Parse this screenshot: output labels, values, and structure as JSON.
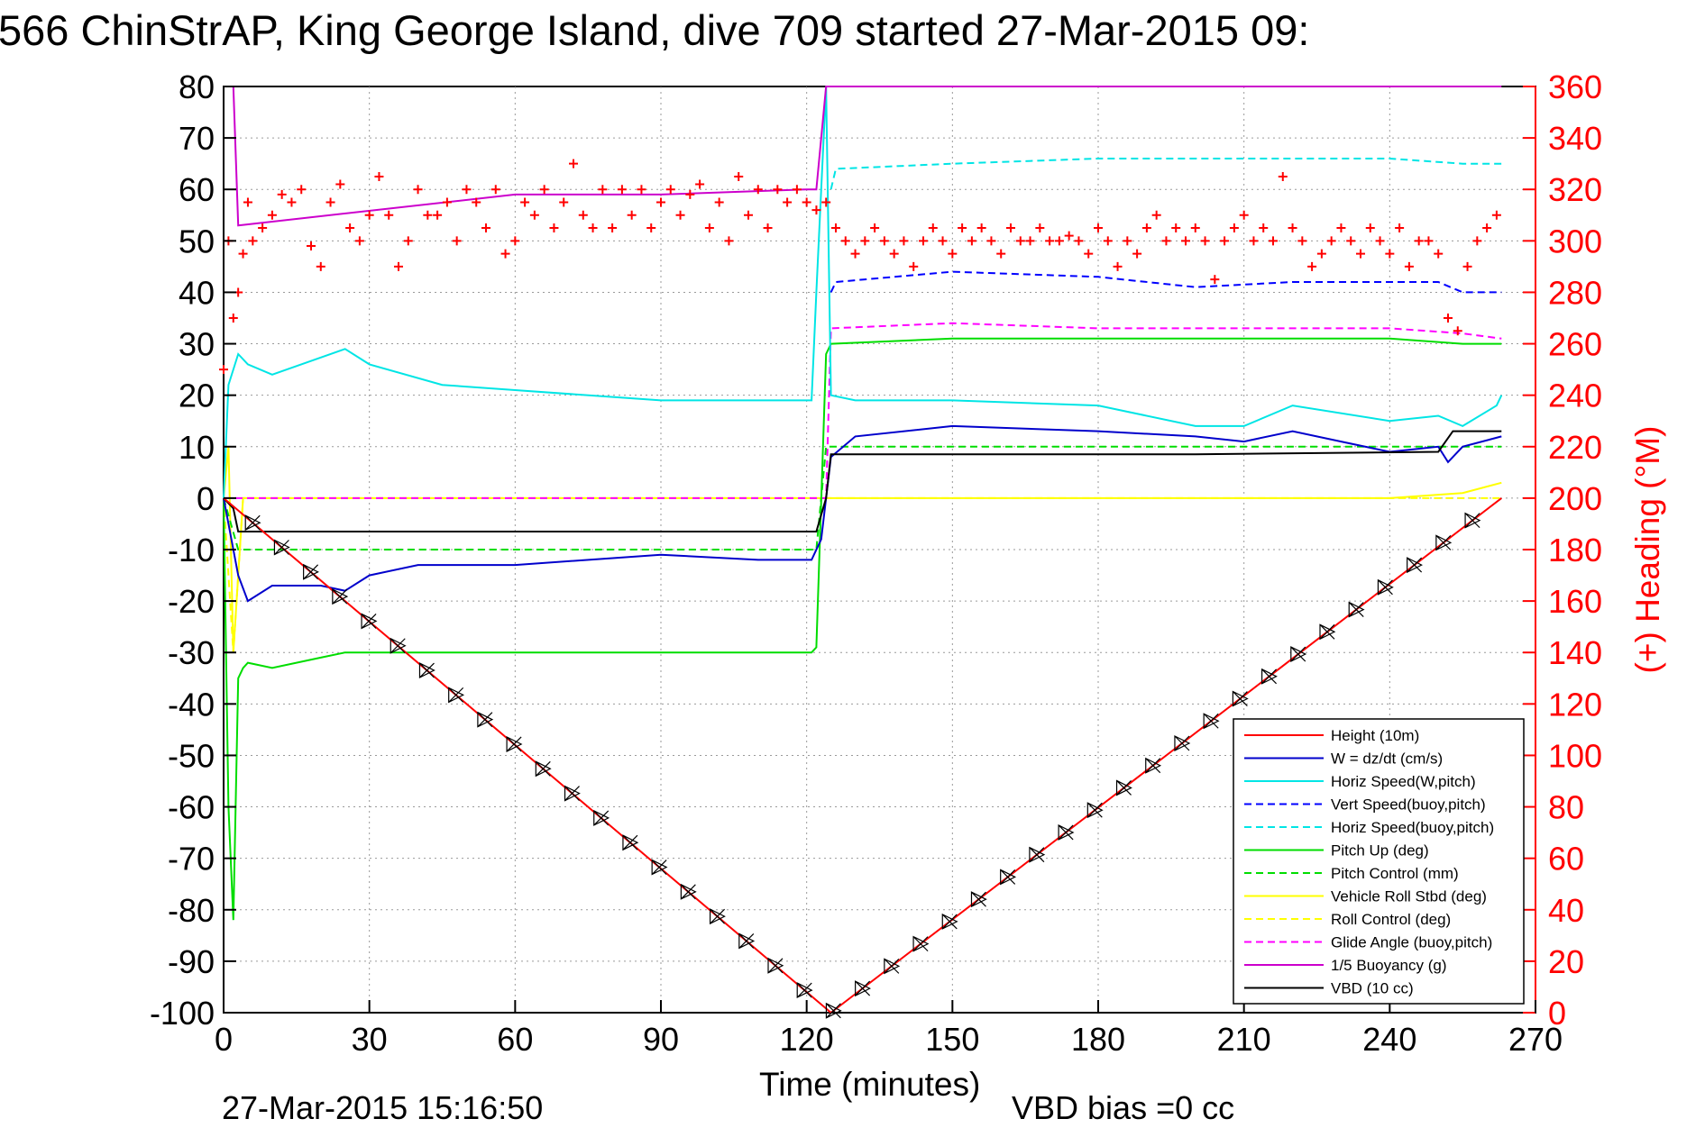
{
  "title": "566 ChinStrAP, King George Island, dive 709 started 27-Mar-2015 09:",
  "footer_left": "27-Mar-2015 15:16:50",
  "footer_right": "VBD bias =0 cc",
  "chart_data": {
    "type": "line",
    "xlabel": "Time (minutes)",
    "ylabel": "",
    "y2label": "(+) Heading (°M)",
    "xlim": [
      0,
      270
    ],
    "ylim": [
      -100,
      80
    ],
    "y2lim": [
      0,
      360
    ],
    "xticks": [
      0,
      30,
      60,
      90,
      120,
      150,
      180,
      210,
      240,
      270
    ],
    "yticks": [
      80,
      70,
      60,
      50,
      40,
      30,
      20,
      10,
      0,
      -10,
      -20,
      -30,
      -40,
      -50,
      -60,
      -70,
      -80,
      -90,
      -100
    ],
    "y2ticks": [
      360,
      340,
      320,
      300,
      280,
      260,
      240,
      220,
      200,
      180,
      160,
      140,
      120,
      100,
      80,
      60,
      40,
      20,
      0
    ],
    "grid": true,
    "legend_position": "bottom-right",
    "colors": {
      "height": "#ff0000",
      "w": "#0000cc",
      "horiz_speed": "#00e5e5",
      "vert_speed_buoy": "#0000ff",
      "horiz_speed_buoy": "#00e5e5",
      "pitch_up": "#00dd00",
      "pitch_control": "#00dd00",
      "roll": "#ffff00",
      "roll_control": "#ffff00",
      "glide_angle": "#ff00ff",
      "buoyancy": "#cc00cc",
      "vbd": "#000000",
      "heading": "#ff0000"
    },
    "series": [
      {
        "name": "Height (10m)",
        "key": "height",
        "dash": false,
        "x": [
          0,
          125,
          263
        ],
        "y": [
          0,
          -100,
          0
        ]
      },
      {
        "name": "W = dz/dt (cm/s)",
        "key": "w",
        "dash": false,
        "x": [
          0,
          1,
          3,
          5,
          10,
          20,
          25,
          30,
          40,
          60,
          90,
          110,
          121,
          123,
          125,
          130,
          150,
          180,
          200,
          210,
          220,
          230,
          240,
          250,
          252,
          255,
          263
        ],
        "y": [
          0,
          -5,
          -15,
          -20,
          -17,
          -17,
          -18,
          -15,
          -13,
          -13,
          -11,
          -12,
          -12,
          -8,
          8,
          12,
          14,
          13,
          12,
          11,
          13,
          11,
          9,
          10,
          7,
          10,
          12
        ]
      },
      {
        "name": "Horiz Speed(W,pitch)",
        "key": "horiz_speed",
        "dash": false,
        "x": [
          0,
          1,
          3,
          5,
          10,
          25,
          30,
          45,
          60,
          90,
          110,
          121,
          122,
          124,
          125,
          130,
          150,
          180,
          200,
          210,
          220,
          240,
          250,
          255,
          262,
          263
        ],
        "y": [
          0,
          22,
          28,
          26,
          24,
          29,
          26,
          22,
          21,
          19,
          19,
          19,
          40,
          80,
          20,
          19,
          19,
          18,
          14,
          14,
          18,
          15,
          16,
          14,
          18,
          20
        ]
      },
      {
        "name": "Vert Speed(buoy,pitch)",
        "key": "vert_speed_buoy",
        "dash": true,
        "x": [
          125,
          126,
          150,
          180,
          200,
          220,
          250,
          255,
          263
        ],
        "y": [
          40,
          42,
          44,
          43,
          41,
          42,
          42,
          40,
          40
        ]
      },
      {
        "name": "Horiz Speed(buoy,pitch)",
        "key": "horiz_speed_buoy",
        "dash": true,
        "x": [
          125,
          126,
          150,
          180,
          210,
          240,
          255,
          263
        ],
        "y": [
          60,
          64,
          65,
          66,
          66,
          66,
          65,
          65
        ]
      },
      {
        "name": "Pitch Up (deg)",
        "key": "pitch_up",
        "dash": false,
        "x": [
          0,
          1,
          2,
          3,
          4,
          5,
          10,
          20,
          25,
          30,
          60,
          90,
          110,
          121,
          122,
          124,
          125,
          150,
          180,
          210,
          240,
          255,
          263
        ],
        "y": [
          0,
          -60,
          -82,
          -35,
          -33,
          -32,
          -33,
          -31,
          -30,
          -30,
          -30,
          -30,
          -30,
          -30,
          -29,
          28,
          30,
          31,
          31,
          31,
          31,
          30,
          30
        ]
      },
      {
        "name": "Pitch Control (mm)",
        "key": "pitch_control",
        "dash": true,
        "x": [
          0,
          3,
          5,
          20,
          30,
          60,
          90,
          121,
          122,
          124,
          125,
          150,
          180,
          240,
          263
        ],
        "y": [
          0,
          -10,
          -10,
          -10,
          -10,
          -10,
          -10,
          -10,
          -10,
          10,
          10,
          10,
          10,
          10,
          10
        ]
      },
      {
        "name": "Vehicle Roll Stbd (deg)",
        "key": "roll",
        "dash": false,
        "x": [
          0,
          1,
          2,
          4,
          10,
          20,
          40,
          60,
          90,
          120,
          124,
          130,
          150,
          180,
          210,
          240,
          255,
          263
        ],
        "y": [
          0,
          10,
          -30,
          0,
          0,
          0,
          0,
          0,
          0,
          0,
          0,
          0,
          0,
          0,
          0,
          0,
          1,
          3
        ]
      },
      {
        "name": "Roll Control (deg)",
        "key": "roll_control",
        "dash": true,
        "x": [
          0,
          2,
          4,
          30,
          60,
          90,
          120,
          124,
          150,
          180,
          210,
          240,
          263
        ],
        "y": [
          0,
          -30,
          0,
          0,
          0,
          0,
          0,
          0,
          0,
          0,
          0,
          0,
          0
        ]
      },
      {
        "name": "Glide Angle (buoy,pitch)",
        "key": "glide_angle",
        "dash": true,
        "x": [
          0,
          2,
          60,
          90,
          120,
          124,
          125,
          150,
          180,
          210,
          240,
          255,
          263
        ],
        "y": [
          0,
          0,
          0,
          0,
          0,
          0,
          33,
          34,
          33,
          33,
          33,
          32,
          31
        ]
      },
      {
        "name": "1/5 Buoyancy (g)",
        "key": "buoyancy",
        "dash": false,
        "x": [
          2,
          3,
          60,
          90,
          120,
          122,
          124,
          263
        ],
        "y": [
          80,
          53,
          59,
          59,
          60,
          60,
          80,
          80
        ]
      },
      {
        "name": "VBD (10 cc)",
        "key": "vbd",
        "dash": false,
        "x": [
          0,
          2,
          3,
          120,
          122,
          124,
          125,
          200,
          250,
          253,
          263
        ],
        "y": [
          0,
          -2,
          -6.5,
          -6.5,
          -6.5,
          0,
          8.5,
          8.5,
          9,
          13,
          13
        ]
      }
    ],
    "heading": {
      "name": "Heading",
      "axis": "right",
      "marker": "+",
      "x": [
        0,
        1,
        2,
        3,
        4,
        5,
        6,
        8,
        10,
        12,
        14,
        16,
        18,
        20,
        22,
        24,
        26,
        28,
        30,
        32,
        34,
        36,
        38,
        40,
        42,
        44,
        46,
        48,
        50,
        52,
        54,
        56,
        58,
        60,
        62,
        64,
        66,
        68,
        70,
        72,
        74,
        76,
        78,
        80,
        82,
        84,
        86,
        88,
        90,
        92,
        94,
        96,
        98,
        100,
        102,
        104,
        106,
        108,
        110,
        112,
        114,
        116,
        118,
        120,
        122,
        124,
        126,
        128,
        130,
        132,
        134,
        136,
        138,
        140,
        142,
        144,
        146,
        148,
        150,
        152,
        154,
        156,
        158,
        160,
        162,
        164,
        166,
        168,
        170,
        172,
        174,
        176,
        178,
        180,
        182,
        184,
        186,
        188,
        190,
        192,
        194,
        196,
        198,
        200,
        202,
        204,
        206,
        208,
        210,
        212,
        214,
        216,
        218,
        220,
        222,
        224,
        226,
        228,
        230,
        232,
        234,
        236,
        238,
        240,
        242,
        244,
        246,
        248,
        250,
        252,
        254,
        256,
        258,
        260,
        262
      ],
      "y": [
        250,
        300,
        270,
        280,
        295,
        315,
        300,
        305,
        310,
        318,
        315,
        320,
        298,
        290,
        315,
        322,
        305,
        300,
        310,
        325,
        310,
        290,
        300,
        320,
        310,
        310,
        315,
        300,
        320,
        315,
        305,
        320,
        295,
        300,
        315,
        310,
        320,
        305,
        315,
        330,
        310,
        305,
        320,
        305,
        320,
        310,
        320,
        305,
        315,
        320,
        310,
        318,
        322,
        305,
        315,
        300,
        325,
        310,
        320,
        305,
        320,
        315,
        320,
        315,
        312,
        315,
        305,
        300,
        295,
        300,
        305,
        300,
        295,
        300,
        290,
        300,
        305,
        300,
        295,
        305,
        300,
        305,
        300,
        295,
        305,
        300,
        300,
        305,
        300,
        300,
        302,
        300,
        295,
        305,
        300,
        290,
        300,
        295,
        305,
        310,
        300,
        305,
        300,
        305,
        300,
        285,
        300,
        305,
        310,
        300,
        305,
        300,
        325,
        305,
        300,
        290,
        295,
        300,
        305,
        300,
        295,
        305,
        300,
        295,
        305,
        290,
        300,
        300,
        295,
        270,
        265,
        290,
        300,
        305,
        310
      ]
    }
  }
}
